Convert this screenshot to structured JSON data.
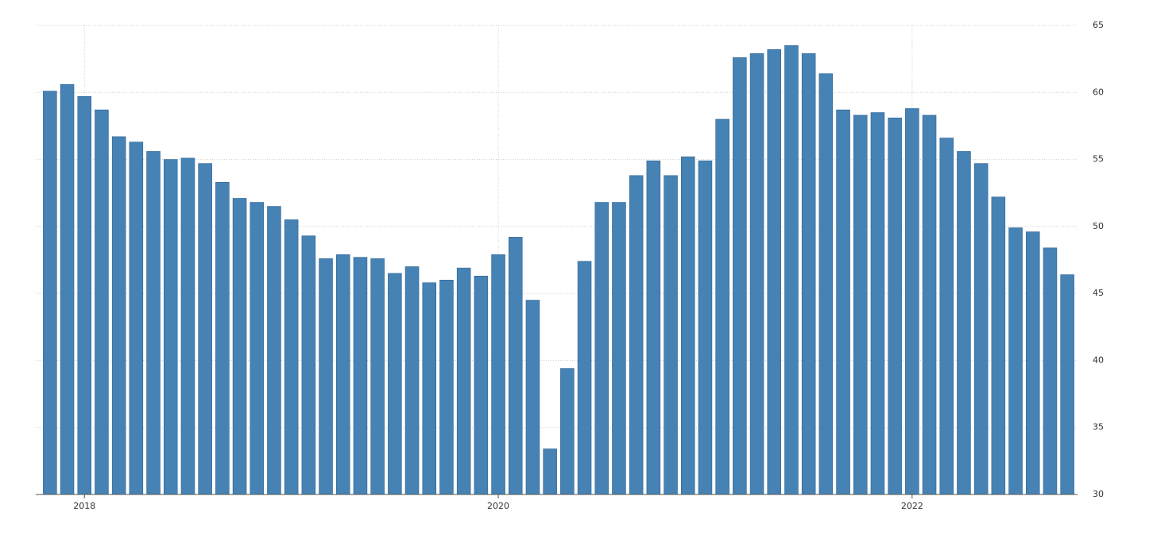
{
  "chart_data": {
    "type": "bar",
    "categories": [
      null,
      null,
      "2018",
      null,
      null,
      null,
      null,
      null,
      null,
      null,
      null,
      null,
      null,
      null,
      null,
      null,
      null,
      null,
      null,
      null,
      null,
      null,
      null,
      null,
      null,
      null,
      "2020",
      null,
      null,
      null,
      null,
      null,
      null,
      null,
      null,
      null,
      null,
      null,
      null,
      null,
      null,
      null,
      null,
      null,
      null,
      null,
      null,
      null,
      null,
      null,
      "2022",
      null,
      null,
      null,
      null,
      null,
      null,
      null,
      null,
      null
    ],
    "values": [
      60.1,
      60.6,
      59.7,
      58.7,
      56.7,
      56.3,
      55.6,
      55.0,
      55.1,
      54.7,
      53.3,
      52.1,
      51.8,
      51.5,
      50.5,
      49.3,
      47.6,
      47.9,
      47.7,
      47.6,
      46.5,
      47.0,
      45.8,
      46.0,
      46.9,
      46.3,
      47.9,
      49.2,
      44.5,
      33.4,
      39.4,
      47.4,
      51.8,
      51.8,
      53.8,
      54.9,
      53.8,
      55.2,
      54.9,
      58.0,
      62.6,
      62.9,
      63.2,
      63.5,
      62.9,
      61.4,
      58.7,
      58.3,
      58.5,
      58.1,
      58.8,
      58.3,
      56.6,
      55.6,
      54.7,
      52.2,
      49.9,
      49.6,
      48.4,
      46.4
    ],
    "color": "#4682b4",
    "ylim": [
      30,
      65
    ],
    "yticks": [
      30,
      35,
      40,
      45,
      50,
      55,
      60,
      65
    ],
    "grid": true
  }
}
